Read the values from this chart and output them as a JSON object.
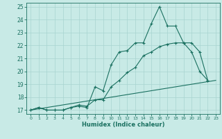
{
  "title": "",
  "xlabel": "Humidex (Indice chaleur)",
  "bg_color": "#c8eae6",
  "grid_color": "#a8d4d0",
  "line_color": "#1a7060",
  "xlim": [
    -0.5,
    23.5
  ],
  "ylim": [
    16.7,
    25.3
  ],
  "xticks": [
    0,
    1,
    2,
    3,
    4,
    5,
    6,
    7,
    8,
    9,
    10,
    11,
    12,
    13,
    14,
    15,
    16,
    17,
    18,
    19,
    20,
    21,
    22,
    23
  ],
  "yticks": [
    17,
    18,
    19,
    20,
    21,
    22,
    23,
    24,
    25
  ],
  "line1_x": [
    0,
    1,
    2,
    3,
    4,
    5,
    6,
    7,
    8,
    9,
    10,
    11,
    12,
    13,
    14,
    15,
    16,
    17,
    18,
    19,
    20,
    21,
    22
  ],
  "line1_y": [
    17.0,
    17.2,
    17.0,
    17.0,
    17.0,
    17.2,
    17.3,
    17.2,
    18.8,
    18.5,
    20.5,
    21.5,
    21.6,
    22.2,
    22.2,
    23.7,
    25.0,
    23.5,
    23.5,
    22.2,
    21.5,
    20.0,
    19.3
  ],
  "line2_x": [
    0,
    1,
    2,
    3,
    4,
    5,
    6,
    7,
    8,
    9,
    10,
    11,
    12,
    13,
    14,
    15,
    16,
    17,
    18,
    19,
    20,
    21,
    22
  ],
  "line2_y": [
    17.0,
    17.2,
    17.0,
    17.0,
    17.0,
    17.2,
    17.4,
    17.3,
    17.8,
    17.8,
    18.8,
    19.3,
    19.9,
    20.3,
    21.2,
    21.5,
    21.9,
    22.1,
    22.2,
    22.2,
    22.2,
    21.5,
    19.3
  ],
  "line3_x": [
    0,
    23
  ],
  "line3_y": [
    17.0,
    19.3
  ],
  "marker_size": 2.5,
  "lw": 0.8
}
